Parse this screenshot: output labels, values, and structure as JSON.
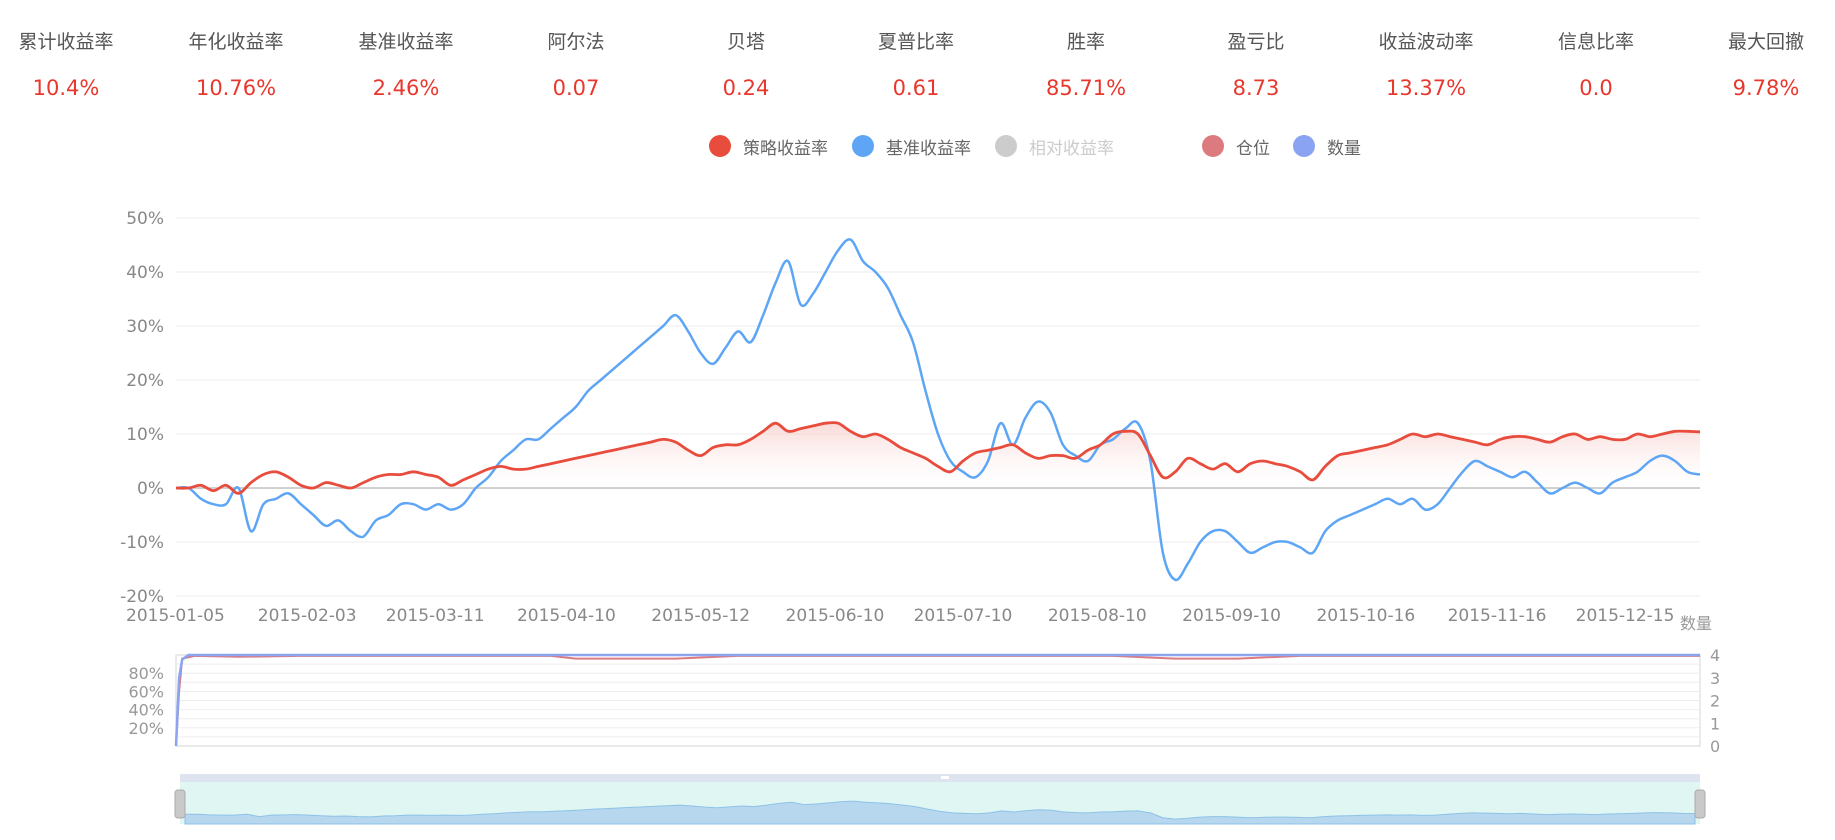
{
  "stats": [
    {
      "label": "累计收益率",
      "value": "10.4%"
    },
    {
      "label": "年化收益率",
      "value": "10.76%"
    },
    {
      "label": "基准收益率",
      "value": "2.46%"
    },
    {
      "label": "阿尔法",
      "value": "0.07"
    },
    {
      "label": "贝塔",
      "value": "0.24"
    },
    {
      "label": "夏普比率",
      "value": "0.61"
    },
    {
      "label": "胜率",
      "value": "85.71%"
    },
    {
      "label": "盈亏比",
      "value": "8.73"
    },
    {
      "label": "收益波动率",
      "value": "13.37%"
    },
    {
      "label": "信息比率",
      "value": "0.0"
    },
    {
      "label": "最大回撤",
      "value": "9.78%"
    }
  ],
  "legend": [
    {
      "label": "策略收益率",
      "color": "#e84c3d",
      "active": true
    },
    {
      "label": "基准收益率",
      "color": "#5ea6f5",
      "active": true
    },
    {
      "label": "相对收益率",
      "color": "#cccccc",
      "active": false
    },
    {
      "label": "仓位",
      "color": "#dd7a80",
      "active": true
    },
    {
      "label": "数量",
      "color": "#8aa3f2",
      "active": true
    }
  ],
  "chart_data": [
    {
      "type": "line",
      "x_tick_labels": [
        "2015-01-05",
        "2015-02-03",
        "2015-03-11",
        "2015-04-10",
        "2015-05-12",
        "2015-06-10",
        "2015-07-10",
        "2015-08-10",
        "2015-09-10",
        "2015-10-16",
        "2015-11-16",
        "2015-12-15"
      ],
      "y_tick_labels": [
        "-20%",
        "-10%",
        "0%",
        "10%",
        "20%",
        "30%",
        "40%",
        "50%"
      ],
      "ylim": [
        -20,
        50
      ],
      "grid": true,
      "series": [
        {
          "name": "策略收益率",
          "color": "#e84c3d",
          "x": [
            0,
            2,
            4,
            6,
            8,
            10,
            12,
            14,
            16,
            18,
            20,
            22,
            24,
            26,
            28,
            30,
            32,
            34,
            36,
            38,
            40,
            42,
            44,
            46,
            48,
            50,
            52,
            54,
            56,
            58,
            60,
            62,
            64,
            66,
            68,
            70,
            72,
            74,
            76,
            78,
            80,
            82,
            84,
            86,
            88,
            90,
            92,
            94,
            96,
            98,
            100,
            102,
            104,
            106,
            108,
            110,
            112,
            114,
            116,
            118,
            120,
            122,
            124,
            126,
            128,
            130,
            132,
            134,
            136,
            138,
            140,
            142,
            144,
            146,
            148,
            150,
            152,
            154,
            156,
            158,
            160,
            162,
            164,
            166,
            168,
            170,
            172,
            174,
            176,
            178,
            180,
            182,
            184,
            186,
            188,
            190,
            192,
            194,
            196,
            198,
            200,
            202,
            204,
            206,
            208,
            210,
            212,
            214,
            216,
            218,
            220,
            222,
            224,
            226,
            228,
            230,
            232,
            234,
            236,
            238,
            240,
            242,
            244
          ],
          "values": [
            0,
            0,
            0.5,
            -0.5,
            0.5,
            -1,
            1,
            2.5,
            3,
            2,
            0.5,
            0,
            1,
            0.5,
            0,
            1,
            2,
            2.5,
            2.5,
            3,
            2.5,
            2,
            0.5,
            1.5,
            2.5,
            3.5,
            4,
            3.5,
            3.5,
            4,
            4.5,
            5,
            5.5,
            6,
            6.5,
            7,
            7.5,
            8,
            8.5,
            9,
            8.5,
            7,
            6,
            7.5,
            8,
            8,
            9,
            10.5,
            12,
            10.5,
            11,
            11.5,
            12,
            12,
            10.5,
            9.5,
            10,
            9,
            7.5,
            6.5,
            5.5,
            4,
            3,
            5,
            6.5,
            7,
            7.5,
            8,
            6.5,
            5.5,
            6,
            6,
            5.5,
            7,
            8,
            10,
            10.5,
            10,
            6,
            2,
            3,
            5.5,
            4.5,
            3.5,
            4.5,
            3,
            4.5,
            5,
            4.5,
            4,
            3,
            1.5,
            4,
            6,
            6.5,
            7,
            7.5,
            8,
            9,
            10,
            9.5,
            10,
            9.5,
            9,
            8.5,
            8,
            9,
            9.5,
            9.5,
            9,
            8.5,
            9.5,
            10,
            9,
            9.5,
            9,
            9,
            10,
            9.5,
            10,
            10.5,
            10.5,
            10.4
          ]
        },
        {
          "name": "基准收益率",
          "color": "#5ea6f5",
          "x": [
            0,
            2,
            4,
            6,
            8,
            10,
            12,
            14,
            16,
            18,
            20,
            22,
            24,
            26,
            28,
            30,
            32,
            34,
            36,
            38,
            40,
            42,
            44,
            46,
            48,
            50,
            52,
            54,
            56,
            58,
            60,
            62,
            64,
            66,
            68,
            70,
            72,
            74,
            76,
            78,
            80,
            82,
            84,
            86,
            88,
            90,
            92,
            94,
            96,
            98,
            100,
            102,
            104,
            106,
            108,
            110,
            112,
            114,
            116,
            118,
            120,
            122,
            124,
            126,
            128,
            130,
            132,
            134,
            136,
            138,
            140,
            142,
            144,
            146,
            148,
            150,
            152,
            154,
            156,
            158,
            160,
            162,
            164,
            166,
            168,
            170,
            172,
            174,
            176,
            178,
            180,
            182,
            184,
            186,
            188,
            190,
            192,
            194,
            196,
            198,
            200,
            202,
            204,
            206,
            208,
            210,
            212,
            214,
            216,
            218,
            220,
            222,
            224,
            226,
            228,
            230,
            232,
            234,
            236,
            238,
            240,
            242,
            244
          ],
          "values": [
            0,
            0,
            -2,
            -3,
            -3,
            0,
            -8,
            -3,
            -2,
            -1,
            -3,
            -5,
            -7,
            -6,
            -8,
            -9,
            -6,
            -5,
            -3,
            -3,
            -4,
            -3,
            -4,
            -3,
            0,
            2,
            5,
            7,
            9,
            9,
            11,
            13,
            15,
            18,
            20,
            22,
            24,
            26,
            28,
            30,
            32,
            29,
            25,
            23,
            26,
            29,
            27,
            32,
            38,
            42,
            34,
            36,
            40,
            44,
            46,
            42,
            40,
            37,
            32,
            27,
            18,
            10,
            5,
            3,
            2,
            5,
            12,
            8,
            13,
            16,
            14,
            8,
            6,
            5,
            8,
            9,
            11,
            12,
            5,
            -12,
            -17,
            -14,
            -10,
            -8,
            -8,
            -10,
            -12,
            -11,
            -10,
            -10,
            -11,
            -12,
            -8,
            -6,
            -5,
            -4,
            -3,
            -2,
            -3,
            -2,
            -4,
            -3,
            0,
            3,
            5,
            4,
            3,
            2,
            3,
            1,
            -1,
            0,
            1,
            0,
            -1,
            1,
            2,
            3,
            5,
            6,
            5,
            3,
            2.5
          ]
        }
      ]
    },
    {
      "type": "line",
      "y_tick_labels_left": [
        "20%",
        "40%",
        "60%",
        "80%"
      ],
      "y_tick_labels_right": [
        "0",
        "1",
        "2",
        "3",
        "4"
      ],
      "ylabel_right": "数量",
      "series": [
        {
          "name": "仓位",
          "color": "#dd7a80",
          "x": [
            0,
            0.5,
            1,
            3,
            10,
            20,
            60,
            64,
            80,
            90,
            95,
            100,
            120,
            150,
            160,
            170,
            180,
            200,
            220,
            244
          ],
          "values": [
            0,
            60,
            96,
            99,
            98,
            99,
            99,
            96,
            96,
            99,
            99,
            99,
            99,
            99,
            96,
            96,
            99,
            99,
            99,
            99
          ]
        },
        {
          "name": "数量",
          "color": "#8aa3f2",
          "x": [
            0,
            0.5,
            1,
            2,
            244
          ],
          "values": [
            0,
            3,
            3.8,
            4,
            4
          ]
        }
      ]
    }
  ]
}
